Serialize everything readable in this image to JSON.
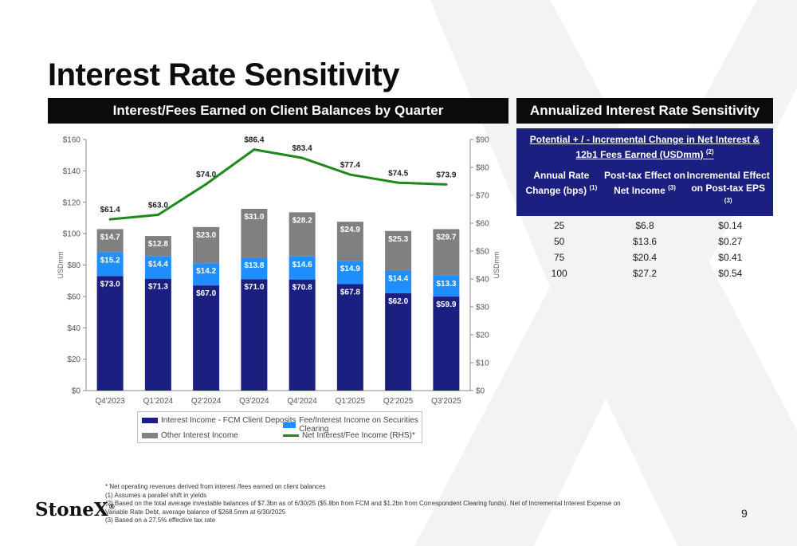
{
  "page": {
    "title": "Interest Rate Sensitivity",
    "chart_header": "Interest/Fees Earned on Client Balances by Quarter",
    "table_header": "Annualized Interest Rate Sensitivity",
    "page_number": "9",
    "logo_text": "StoneX",
    "logo_mark": "®"
  },
  "table": {
    "title": "Potential + / - Incremental Change in Net Interest & 12b1 Fees Earned (USDmm)",
    "title_note": "(2)",
    "columns": [
      {
        "label": "Annual Rate Change (bps)",
        "note": "(1)"
      },
      {
        "label": "Post-tax Effect on Net Income",
        "note": "(3)"
      },
      {
        "label": "Incremental Effect on Post-tax EPS",
        "note": "(3)"
      }
    ],
    "rows": [
      [
        "25",
        "$6.8",
        "$0.14"
      ],
      [
        "50",
        "$13.6",
        "$0.27"
      ],
      [
        "75",
        "$20.4",
        "$0.41"
      ],
      [
        "100",
        "$27.2",
        "$0.54"
      ]
    ]
  },
  "chart_data": {
    "type": "bar",
    "stacked": true,
    "categories": [
      "Q4'2023",
      "Q1'2024",
      "Q2'2024",
      "Q3'2024",
      "Q4'2024",
      "Q1'2025",
      "Q2'2025",
      "Q3'2025"
    ],
    "ylabel": "USDmm",
    "y2label": "USDmm",
    "ylim": [
      0,
      160
    ],
    "y2lim": [
      0,
      90
    ],
    "yticks": [
      "$0",
      "$20",
      "$40",
      "$60",
      "$80",
      "$100",
      "$120",
      "$140",
      "$160"
    ],
    "y2ticks": [
      "$0",
      "$10",
      "$20",
      "$30",
      "$40",
      "$50",
      "$60",
      "$70",
      "$80",
      "$90"
    ],
    "series": [
      {
        "name": "Interest Income - FCM Client Deposits",
        "color": "#1b1f80",
        "axis": "left",
        "values": [
          73.0,
          71.3,
          67.0,
          71.0,
          70.8,
          67.8,
          62.0,
          59.9
        ],
        "labels": [
          "$73.0",
          "$71.3",
          "$67.0",
          "$71.0",
          "$70.8",
          "$67.8",
          "$62.0",
          "$59.9"
        ]
      },
      {
        "name": "Fee/Interest Income on Securities Clearing",
        "color": "#1f8fff",
        "axis": "left",
        "values": [
          15.2,
          14.4,
          14.2,
          13.8,
          14.6,
          14.9,
          14.4,
          13.3
        ],
        "labels": [
          "$15.2",
          "$14.4",
          "$14.2",
          "$13.8",
          "$14.6",
          "$14.9",
          "$14.4",
          "$13.3"
        ]
      },
      {
        "name": "Other Interest Income",
        "color": "#808080",
        "axis": "left",
        "values": [
          14.7,
          12.8,
          23.0,
          31.0,
          28.2,
          24.9,
          25.3,
          29.7
        ],
        "labels": [
          "$14.7",
          "$12.8",
          "$23.0",
          "$31.0",
          "$28.2",
          "$24.9",
          "$25.3",
          "$29.7"
        ]
      },
      {
        "name": "Net Interest/Fee Income (RHS)*",
        "type": "line",
        "color": "#1e8a1e",
        "axis": "right",
        "values": [
          61.4,
          63.0,
          74.0,
          86.4,
          83.4,
          77.4,
          74.5,
          73.9
        ],
        "labels": [
          "$61.4",
          "$63.0",
          "$74.0",
          "$86.4",
          "$83.4",
          "$77.4",
          "$74.5",
          "$73.9"
        ]
      }
    ],
    "legend": "bottom"
  },
  "notes": [
    "* Net operating revenues derived from interest /fees earned on client balances",
    "(1) Assumes a parallel shift in yields",
    "(2) Based on the total average investable balances of $7.3bn as of 6/30/25 ($5.8bn from FCM and $1.2bn from Correspondent Clearing funds). Net of Incremental Interest Expense on Variable Rate Debt, average balance of $268.5mm at 6/30/2025",
    "(3) Based on a 27.5% effective tax rate"
  ]
}
